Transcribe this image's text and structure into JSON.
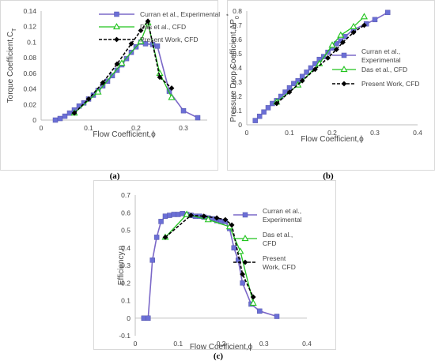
{
  "colors": {
    "curran": "#7b68c8",
    "curran_marker": "#6b6fd6",
    "das": "#22c41f",
    "present": "#000000",
    "axis": "#bfbfbf",
    "text": "#444444"
  },
  "panel_labels": [
    "(a)",
    "(b)",
    "(c)"
  ],
  "chart_data": [
    {
      "type": "line",
      "panel": "(a)",
      "xlabel": "Flow Coefficient,ϕ",
      "ylabel": "Torque Coefficient,C",
      "ylabel_sub": "T",
      "xlim": [
        0,
        0.35
      ],
      "ylim": [
        0,
        0.14
      ],
      "xticks": [
        0,
        0.1,
        0.2,
        0.3
      ],
      "xtick_labels": [
        "0",
        "0.1",
        "0.2",
        "0.3"
      ],
      "yticks": [
        0,
        0.02,
        0.04,
        0.06,
        0.08,
        0.1,
        0.12,
        0.14
      ],
      "ytick_labels": [
        "0",
        "0.02",
        "0.04",
        "0.06",
        "0.08",
        "0.1",
        "0.12",
        "0.14"
      ],
      "grid": false,
      "legend": "top-right",
      "series": [
        {
          "name": "Curran et al., Experimental",
          "marker": "square",
          "x": [
            0.03,
            0.04,
            0.05,
            0.06,
            0.07,
            0.08,
            0.09,
            0.1,
            0.11,
            0.12,
            0.13,
            0.14,
            0.15,
            0.16,
            0.17,
            0.18,
            0.19,
            0.2,
            0.21,
            0.22,
            0.235,
            0.245,
            0.27,
            0.3,
            0.33
          ],
          "y": [
            0.0,
            0.002,
            0.005,
            0.009,
            0.013,
            0.018,
            0.022,
            0.027,
            0.032,
            0.038,
            0.044,
            0.05,
            0.057,
            0.064,
            0.071,
            0.079,
            0.087,
            0.094,
            0.1,
            0.098,
            0.097,
            0.095,
            0.037,
            0.012,
            0.003
          ]
        },
        {
          "name": "Das et al., CFD",
          "marker": "triangle",
          "x": [
            0.07,
            0.12,
            0.17,
            0.21,
            0.225,
            0.25,
            0.275
          ],
          "y": [
            0.009,
            0.036,
            0.073,
            0.101,
            0.125,
            0.06,
            0.029
          ]
        },
        {
          "name": "Present Work, CFD",
          "marker": "diamond",
          "x": [
            0.07,
            0.1,
            0.13,
            0.16,
            0.19,
            0.21,
            0.225,
            0.25,
            0.275
          ],
          "y": [
            0.009,
            0.027,
            0.048,
            0.072,
            0.098,
            0.115,
            0.127,
            0.055,
            0.041
          ]
        }
      ]
    },
    {
      "type": "line",
      "panel": "(b)",
      "xlabel": "Flow Coefficient,ϕ",
      "ylabel": "Pressure Drop Coefficient,ΔP",
      "ylabel_sub": "0",
      "ylabel_sup": "*",
      "xlim": [
        0,
        0.4
      ],
      "ylim": [
        0,
        0.8
      ],
      "xticks": [
        0,
        0.1,
        0.2,
        0.3,
        0.4
      ],
      "xtick_labels": [
        "0",
        "0.1",
        "0.2",
        "0.3",
        "0.4"
      ],
      "yticks": [
        0,
        0.1,
        0.2,
        0.3,
        0.4,
        0.5,
        0.6,
        0.7,
        0.8
      ],
      "ytick_labels": [
        "0",
        "0.1",
        "0.2",
        "0.3",
        "0.4",
        "0.5",
        "0.6",
        "0.7",
        "0.8"
      ],
      "grid": false,
      "legend": "right",
      "series": [
        {
          "name": "Curran et al.,\nExperimental",
          "marker": "square",
          "x": [
            0.02,
            0.03,
            0.04,
            0.05,
            0.06,
            0.07,
            0.08,
            0.09,
            0.1,
            0.11,
            0.12,
            0.13,
            0.14,
            0.15,
            0.16,
            0.17,
            0.18,
            0.19,
            0.2,
            0.21,
            0.22,
            0.23,
            0.25,
            0.28,
            0.3,
            0.33
          ],
          "y": [
            0.03,
            0.06,
            0.09,
            0.12,
            0.15,
            0.17,
            0.2,
            0.23,
            0.26,
            0.29,
            0.31,
            0.34,
            0.37,
            0.4,
            0.43,
            0.46,
            0.48,
            0.51,
            0.54,
            0.57,
            0.59,
            0.62,
            0.67,
            0.71,
            0.74,
            0.79
          ]
        },
        {
          "name": "Das et al., CFD",
          "marker": "triangle",
          "x": [
            0.07,
            0.12,
            0.17,
            0.2,
            0.22,
            0.25,
            0.275
          ],
          "y": [
            0.16,
            0.28,
            0.43,
            0.56,
            0.63,
            0.69,
            0.76
          ]
        },
        {
          "name": "Present Work, CFD",
          "marker": "diamond",
          "x": [
            0.07,
            0.1,
            0.13,
            0.16,
            0.19,
            0.21,
            0.225,
            0.25,
            0.275
          ],
          "y": [
            0.15,
            0.23,
            0.31,
            0.39,
            0.47,
            0.53,
            0.58,
            0.65,
            0.7
          ]
        }
      ]
    },
    {
      "type": "line",
      "panel": "(c)",
      "xlabel": "Flow Coefficient,ϕ",
      "ylabel": "Efficiency,η",
      "xlim": [
        0,
        0.4
      ],
      "ylim": [
        -0.1,
        0.7
      ],
      "xticks": [
        0,
        0.1,
        0.2,
        0.3,
        0.4
      ],
      "xtick_labels": [
        "0",
        "0.1",
        "0.2",
        "0.3",
        "0.4"
      ],
      "yticks": [
        -0.1,
        0,
        0.1,
        0.2,
        0.3,
        0.4,
        0.5,
        0.6,
        0.7
      ],
      "ytick_labels": [
        "-0.1",
        "0",
        "0.1",
        "0.2",
        "0.3",
        "0.4",
        "0.5",
        "0.6",
        "0.7"
      ],
      "grid": false,
      "legend": "right",
      "series": [
        {
          "name": "Curran et al.,\nExperimental",
          "marker": "square",
          "x": [
            0.02,
            0.03,
            0.04,
            0.05,
            0.06,
            0.07,
            0.08,
            0.09,
            0.1,
            0.11,
            0.12,
            0.13,
            0.14,
            0.15,
            0.16,
            0.17,
            0.18,
            0.19,
            0.2,
            0.21,
            0.22,
            0.23,
            0.24,
            0.25,
            0.27,
            0.29,
            0.33
          ],
          "y": [
            0.0,
            0.0,
            0.33,
            0.46,
            0.55,
            0.58,
            0.585,
            0.59,
            0.59,
            0.595,
            0.59,
            0.585,
            0.58,
            0.58,
            0.575,
            0.57,
            0.565,
            0.555,
            0.55,
            0.55,
            0.51,
            0.4,
            0.33,
            0.2,
            0.08,
            0.04,
            0.01
          ]
        },
        {
          "name": "Das et al.,\nCFD",
          "marker": "triangle",
          "x": [
            0.07,
            0.12,
            0.17,
            0.22,
            0.245,
            0.275
          ],
          "y": [
            0.46,
            0.59,
            0.56,
            0.52,
            0.38,
            0.085
          ]
        },
        {
          "name": "Present\nWork, CFD",
          "marker": "diamond",
          "x": [
            0.07,
            0.13,
            0.16,
            0.19,
            0.21,
            0.225,
            0.25,
            0.275
          ],
          "y": [
            0.46,
            0.585,
            0.58,
            0.57,
            0.56,
            0.53,
            0.25,
            0.12
          ]
        }
      ]
    }
  ]
}
